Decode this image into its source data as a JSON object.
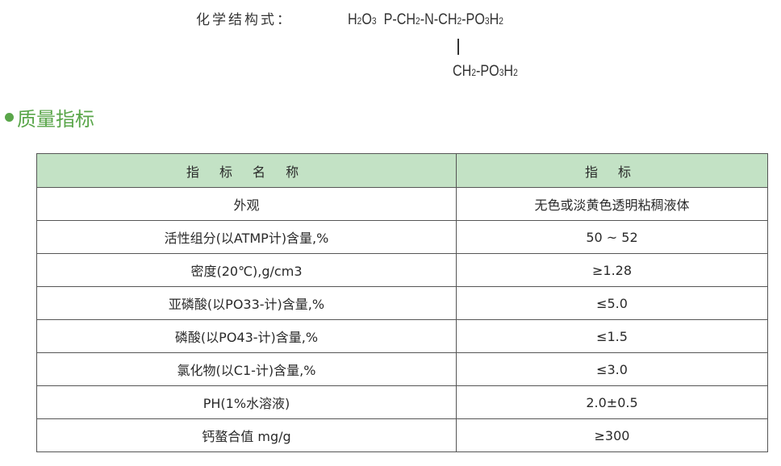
{
  "structure": {
    "label": "化学结构式：",
    "line1": [
      "H",
      "2",
      "O",
      "3",
      "  P-CH",
      "2",
      "-N-CH",
      "2",
      "-PO",
      "3",
      "H",
      "2"
    ],
    "line2": [
      "CH",
      "2",
      "-PO",
      "3",
      "H",
      "2"
    ]
  },
  "section": {
    "title": "质量指标",
    "color": "#5aa64a"
  },
  "table": {
    "header_color": "#c3e2c5",
    "headers": [
      "指 标 名 称",
      "指 标"
    ],
    "rows": [
      [
        "外观",
        "无色或淡黄色透明粘稠液体"
      ],
      [
        "活性组分(以ATMP计)含量,%",
        "50 ~ 52"
      ],
      [
        "密度(20℃),g/cm3",
        "≥1.28"
      ],
      [
        "亚磷酸(以PO33-计)含量,%",
        "≤5.0"
      ],
      [
        "磷酸(以PO43-计)含量,%",
        "≤1.5"
      ],
      [
        "氯化物(以C1-计)含量,%",
        "≤3.0"
      ],
      [
        "PH(1%水溶液)",
        "2.0±0.5"
      ],
      [
        "钙螯合值 mg/g",
        "≥300"
      ]
    ]
  }
}
